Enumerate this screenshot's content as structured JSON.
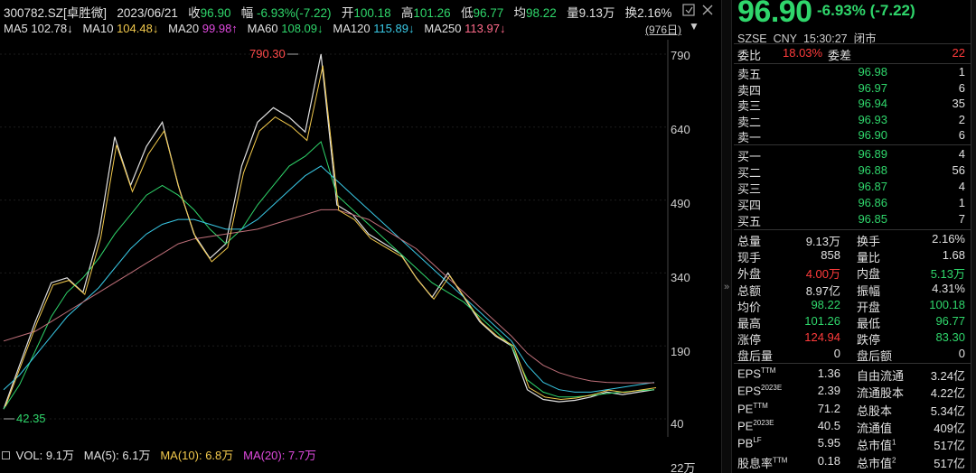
{
  "header": {
    "code": "300782.SZ[卓胜微]",
    "date": "2023/06/21",
    "close_label": "收",
    "close_value": "96.90",
    "change_label": "幅",
    "change_value": "-6.93%(-7.22)",
    "open_label": "开",
    "open_value": "100.18",
    "high_label": "高",
    "high_value": "101.26",
    "low_label": "低",
    "low_value": "96.77",
    "avg_label": "均",
    "avg_value": "98.22",
    "volume_label": "量",
    "volume_value": "9.13万",
    "turnover_label": "换",
    "turnover_value": "2.16%"
  },
  "ma_bar": {
    "ma5_label": "MA5",
    "ma5_value": "102.78↓",
    "ma10_label": "MA10",
    "ma10_value": "104.48↓",
    "ma20_label": "MA20",
    "ma20_value": "99.98↑",
    "ma60_label": "MA60",
    "ma60_value": "108.09↓",
    "ma120_label": "MA120",
    "ma120_value": "115.89↓",
    "ma250_label": "MA250",
    "ma250_value": "113.97↓",
    "range": "(976日)"
  },
  "chart": {
    "axis_ticks": [
      "790",
      "640",
      "490",
      "340",
      "190",
      "40"
    ],
    "max_marker": "790.30",
    "min_marker": "42.35",
    "colors": {
      "ma5": "#e0e0e0",
      "ma10": "#f2c94c",
      "ma20": "#e04adf",
      "ma60": "#2fd66b",
      "ma120": "#39c9e6",
      "ma250": "#c0707a"
    }
  },
  "chart_data": {
    "type": "line",
    "ylim": [
      40,
      800
    ],
    "series": [
      {
        "name": "MA5",
        "values": [
          60,
          150,
          240,
          320,
          330,
          300,
          420,
          620,
          520,
          600,
          650,
          520,
          420,
          370,
          400,
          560,
          650,
          680,
          660,
          630,
          790,
          480,
          460,
          420,
          400,
          380,
          330,
          290,
          340,
          290,
          240,
          210,
          190,
          100,
          80,
          75,
          78,
          85,
          95,
          90,
          95,
          100
        ]
      },
      {
        "name": "MA60",
        "values": [
          60,
          110,
          180,
          250,
          300,
          330,
          370,
          420,
          460,
          500,
          520,
          500,
          470,
          430,
          400,
          430,
          480,
          520,
          560,
          580,
          610,
          500,
          470,
          440,
          410,
          380,
          350,
          320,
          300,
          280,
          250,
          220,
          190,
          120,
          95,
          85,
          85,
          88,
          92,
          95,
          98,
          100
        ]
      },
      {
        "name": "MA120",
        "values": [
          100,
          130,
          170,
          210,
          250,
          280,
          310,
          350,
          390,
          420,
          440,
          450,
          450,
          440,
          430,
          430,
          450,
          480,
          510,
          540,
          560,
          530,
          500,
          470,
          440,
          410,
          380,
          350,
          320,
          290,
          260,
          230,
          200,
          150,
          115,
          100,
          95,
          95,
          100,
          105,
          110,
          115
        ]
      },
      {
        "name": "MA250",
        "values": [
          200,
          210,
          220,
          240,
          260,
          280,
          300,
          320,
          340,
          360,
          380,
          400,
          410,
          415,
          420,
          425,
          430,
          440,
          450,
          460,
          470,
          470,
          460,
          450,
          430,
          410,
          390,
          360,
          330,
          300,
          270,
          240,
          210,
          175,
          150,
          135,
          125,
          118,
          115,
          114,
          114,
          114
        ]
      }
    ],
    "volume": {
      "vol": "9.1万",
      "ma5": "6.1万",
      "ma10": "6.8万",
      "ma20": "7.7万"
    }
  },
  "volume_bar": {
    "vol_label": "VOL:",
    "vol_value": "9.1万",
    "ma5_label": "MA(5):",
    "ma5_value": "6.1万",
    "ma10_label": "MA(10):",
    "ma10_value": "6.8万",
    "ma20_label": "MA(20):",
    "ma20_value": "7.7万",
    "axis_top": "22万"
  },
  "quote": {
    "price": "96.90",
    "change": "-6.93% (-7.22)",
    "exchange": "SZSE",
    "currency": "CNY",
    "time": "15:30:27",
    "status": "闭市",
    "ratio_label": "委比",
    "ratio_value": "18.03%",
    "diff_label": "委差",
    "diff_value": "22",
    "asks": [
      {
        "label": "卖五",
        "price": "96.98",
        "vol": "1"
      },
      {
        "label": "卖四",
        "price": "96.97",
        "vol": "6"
      },
      {
        "label": "卖三",
        "price": "96.94",
        "vol": "35"
      },
      {
        "label": "卖二",
        "price": "96.93",
        "vol": "2"
      },
      {
        "label": "卖一",
        "price": "96.90",
        "vol": "6"
      }
    ],
    "bids": [
      {
        "label": "买一",
        "price": "96.89",
        "vol": "4"
      },
      {
        "label": "买二",
        "price": "96.88",
        "vol": "56"
      },
      {
        "label": "买三",
        "price": "96.87",
        "vol": "4"
      },
      {
        "label": "买四",
        "price": "96.86",
        "vol": "1"
      },
      {
        "label": "买五",
        "price": "96.85",
        "vol": "7"
      }
    ],
    "stats": [
      {
        "l1": "总量",
        "v1": "9.13万",
        "c1": "#e0e0e0",
        "l2": "换手",
        "v2": "2.16%",
        "c2": "#e0e0e0"
      },
      {
        "l1": "现手",
        "v1": "858",
        "c1": "#e0e0e0",
        "l2": "量比",
        "v2": "1.68",
        "c2": "#e0e0e0"
      },
      {
        "l1": "外盘",
        "v1": "4.00万",
        "c1": "#ff3b3b",
        "l2": "内盘",
        "v2": "5.13万",
        "c2": "#2fd66b"
      },
      {
        "l1": "总额",
        "v1": "8.97亿",
        "c1": "#e0e0e0",
        "l2": "振幅",
        "v2": "4.31%",
        "c2": "#e0e0e0"
      },
      {
        "l1": "均价",
        "v1": "98.22",
        "c1": "#2fd66b",
        "l2": "开盘",
        "v2": "100.18",
        "c2": "#2fd66b"
      },
      {
        "l1": "最高",
        "v1": "101.26",
        "c1": "#2fd66b",
        "l2": "最低",
        "v2": "96.77",
        "c2": "#2fd66b"
      },
      {
        "l1": "涨停",
        "v1": "124.94",
        "c1": "#ff3b3b",
        "l2": "跌停",
        "v2": "83.30",
        "c2": "#2fd66b"
      },
      {
        "l1": "盘后量",
        "v1": "0",
        "c1": "#e0e0e0",
        "l2": "盘后额",
        "v2": "0",
        "c2": "#e0e0e0"
      }
    ],
    "fundamentals": [
      {
        "l1": "EPS",
        "s1": "TTM",
        "v1": "1.36",
        "l2": "自由流通",
        "s2": "",
        "v2": "3.24亿"
      },
      {
        "l1": "EPS",
        "s1": "2023E",
        "v1": "2.39",
        "l2": "流通股本",
        "s2": "",
        "v2": "4.22亿"
      },
      {
        "l1": "PE",
        "s1": "TTM",
        "v1": "71.2",
        "l2": "总股本",
        "s2": "",
        "v2": "5.34亿"
      },
      {
        "l1": "PE",
        "s1": "2023E",
        "v1": "40.5",
        "l2": "流通值",
        "s2": "",
        "v2": "409亿"
      },
      {
        "l1": "PB",
        "s1": "LF",
        "v1": "5.95",
        "l2": "总市值",
        "s2": "1",
        "v2": "517亿"
      },
      {
        "l1": "股息率",
        "s1": "TTM",
        "v1": "0.18",
        "l2": "总市值",
        "s2": "2",
        "v2": "517亿"
      }
    ]
  }
}
